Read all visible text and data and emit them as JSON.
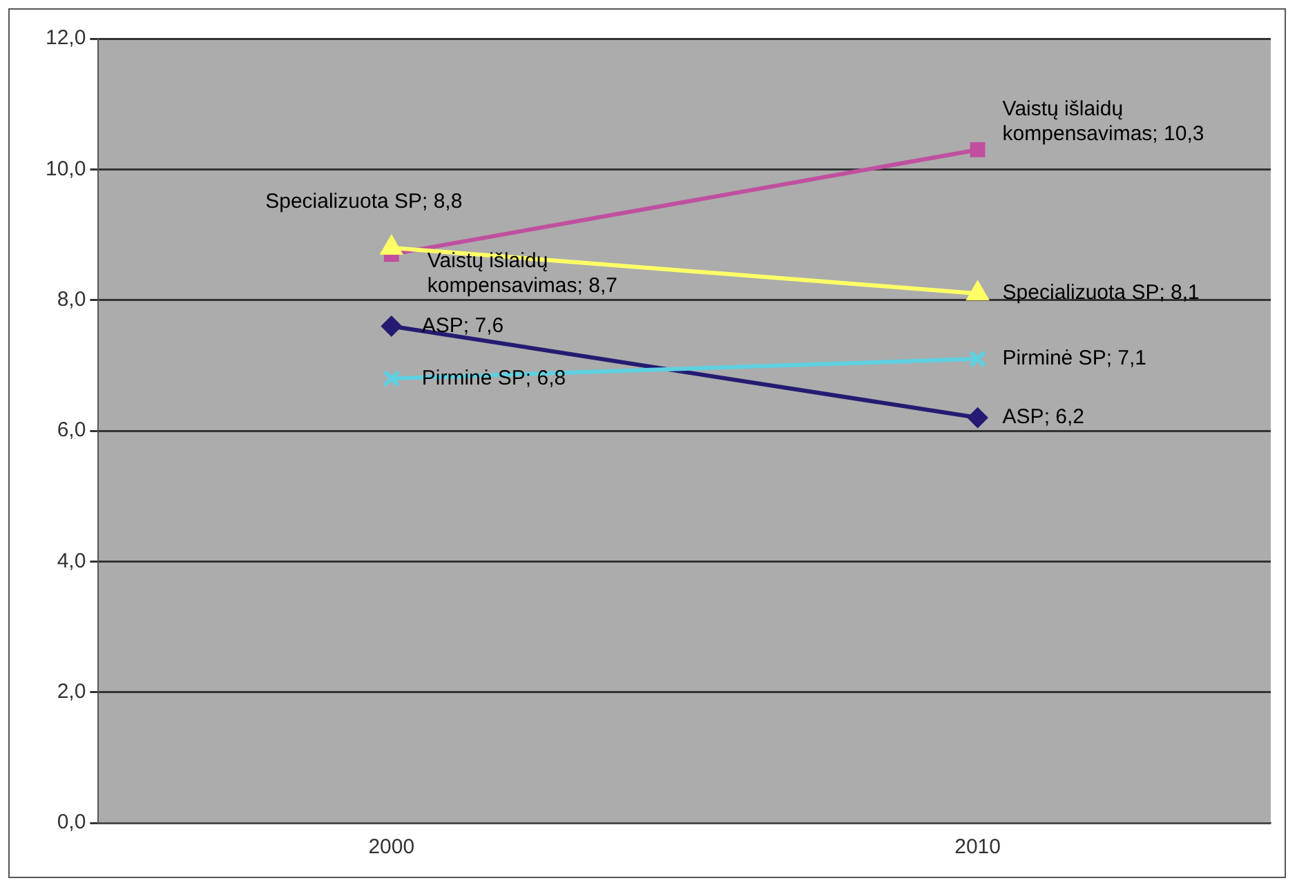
{
  "chart_data": {
    "type": "line",
    "categories": [
      "2000",
      "2010"
    ],
    "series": [
      {
        "name": "Vaistų išlaidų kompensavimas",
        "color": "#c0509f",
        "marker": "square",
        "values": [
          8.7,
          10.3
        ],
        "value_labels": [
          "; 8,7",
          "; 10,3"
        ]
      },
      {
        "name": "Specializuota SP",
        "color": "#ffff66",
        "marker": "triangle",
        "values": [
          8.8,
          8.1
        ],
        "value_labels": [
          "; 8,8",
          "; 8,1"
        ]
      },
      {
        "name": "ASP",
        "color": "#231c72",
        "marker": "diamond",
        "values": [
          7.6,
          6.2
        ],
        "value_labels": [
          "; 7,6",
          "; 6,2"
        ]
      },
      {
        "name": "Pirminė SP",
        "color": "#5fd0e0",
        "marker": "cross",
        "values": [
          6.8,
          7.1
        ],
        "value_labels": [
          "; 6,8",
          "; 7,1"
        ]
      }
    ],
    "ylim": [
      0,
      12
    ],
    "yticks": [
      {
        "value": 0,
        "label": "0,0"
      },
      {
        "value": 2,
        "label": "2,0"
      },
      {
        "value": 4,
        "label": "4,0"
      },
      {
        "value": 6,
        "label": "6,0"
      },
      {
        "value": 8,
        "label": "8,0"
      },
      {
        "value": 10,
        "label": "10,0"
      },
      {
        "value": 12,
        "label": "12,0"
      }
    ],
    "grid": "y",
    "legend": false
  }
}
